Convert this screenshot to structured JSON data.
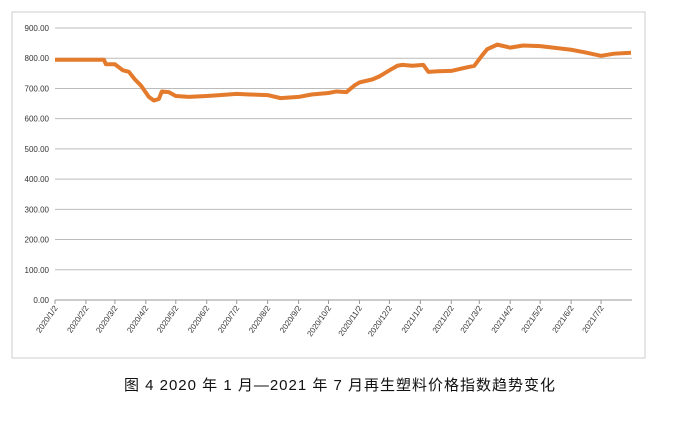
{
  "chart_data": {
    "type": "line",
    "title": "图 4  2020 年 1 月—2021 年 7 月再生塑料价格指数趋势变化",
    "x": [
      "2020/1/2",
      "2020/1/20",
      "2020/2/20",
      "2020/2/22",
      "2020/3/2",
      "2020/3/10",
      "2020/3/16",
      "2020/3/22",
      "2020/3/28",
      "2020/4/5",
      "2020/4/10",
      "2020/4/15",
      "2020/4/18",
      "2020/4/25",
      "2020/5/2",
      "2020/5/15",
      "2020/6/2",
      "2020/6/15",
      "2020/7/2",
      "2020/7/15",
      "2020/8/2",
      "2020/8/15",
      "2020/9/2",
      "2020/9/15",
      "2020/10/2",
      "2020/10/10",
      "2020/10/20",
      "2020/10/28",
      "2020/11/2",
      "2020/11/15",
      "2020/11/22",
      "2020/12/2",
      "2020/12/10",
      "2020/12/15",
      "2020/12/25",
      "2021/1/5",
      "2021/1/10",
      "2021/1/20",
      "2021/2/2",
      "2021/2/15",
      "2021/2/25",
      "2021/3/5",
      "2021/3/10",
      "2021/3/20",
      "2021/4/2",
      "2021/4/15",
      "2021/5/2",
      "2021/5/15",
      "2021/6/2",
      "2021/6/15",
      "2021/7/2",
      "2021/7/15",
      "2021/8/1"
    ],
    "series": [
      {
        "color": "#e47a2c",
        "values": [
          795,
          795,
          795,
          780,
          780,
          760,
          755,
          730,
          710,
          672,
          660,
          665,
          690,
          688,
          675,
          672,
          675,
          678,
          682,
          680,
          678,
          668,
          672,
          680,
          685,
          690,
          688,
          710,
          720,
          730,
          740,
          760,
          775,
          778,
          775,
          778,
          755,
          757,
          758,
          768,
          775,
          810,
          830,
          845,
          835,
          842,
          840,
          835,
          828,
          820,
          808,
          815,
          818
        ]
      }
    ],
    "xlim": [
      "2020/1/2",
      "2021/8/2"
    ],
    "xticks": [
      "2020/1/2",
      "2020/2/2",
      "2020/3/2",
      "2020/4/2",
      "2020/5/2",
      "2020/6/2",
      "2020/7/2",
      "2020/8/2",
      "2020/9/2",
      "2020/10/2",
      "2020/11/2",
      "2020/12/2",
      "2021/1/2",
      "2021/2/2",
      "2021/3/2",
      "2021/4/2",
      "2021/5/2",
      "2021/6/2",
      "2021/7/2"
    ],
    "ylim": [
      0,
      900
    ],
    "yticks": [
      {
        "value": 0,
        "label": "0.00"
      },
      {
        "value": 100,
        "label": "100.00"
      },
      {
        "value": 200,
        "label": "200.00"
      },
      {
        "value": 300,
        "label": "300.00"
      },
      {
        "value": 400,
        "label": "400.00"
      },
      {
        "value": 500,
        "label": "500.00"
      },
      {
        "value": 600,
        "label": "600.00"
      },
      {
        "value": 700,
        "label": "700.00"
      },
      {
        "value": 800,
        "label": "800.00"
      },
      {
        "value": 900,
        "label": "900.00"
      }
    ],
    "grid": true
  }
}
